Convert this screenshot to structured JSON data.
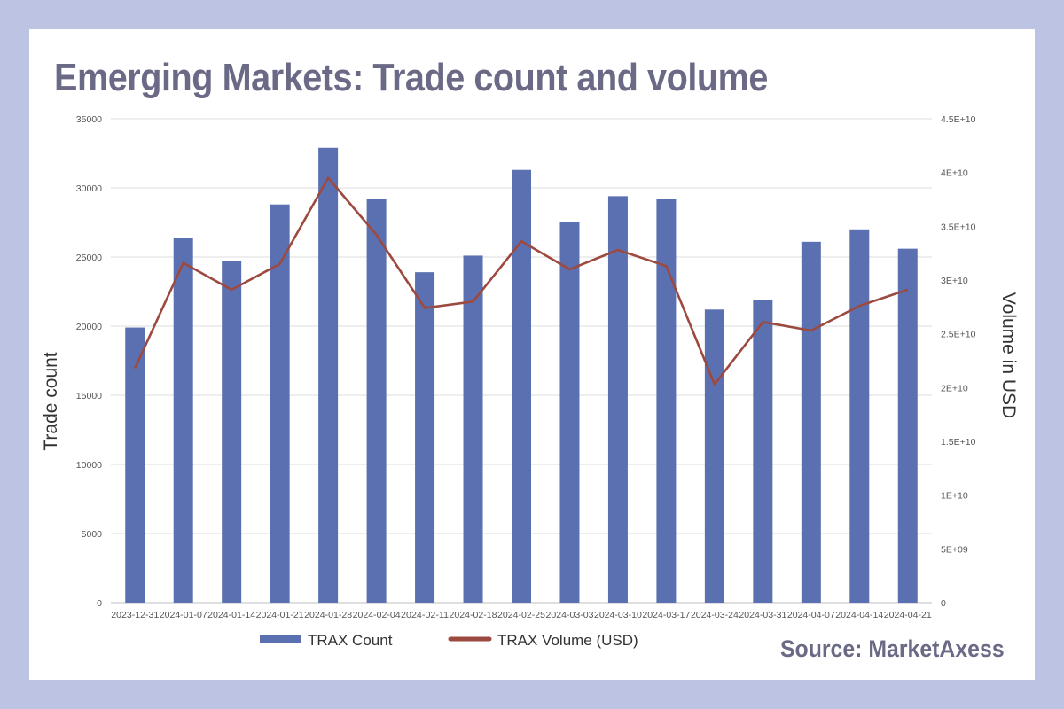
{
  "header": {
    "title": "Emerging Markets: Trade count and volume",
    "source": "Source: MarketAxess"
  },
  "colors": {
    "background": "#bcc3e3",
    "bar": "#5b70b0",
    "line": "#9c4a40",
    "title": "#6a6a86"
  },
  "chart_data": {
    "type": "bar",
    "title": "Emerging Markets: Trade count and volume",
    "categories": [
      "2023-12-31",
      "2024-01-07",
      "2024-01-14",
      "2024-01-21",
      "2024-01-28",
      "2024-02-04",
      "2024-02-11",
      "2024-02-18",
      "2024-02-25",
      "2024-03-03",
      "2024-03-10",
      "2024-03-17",
      "2024-03-24",
      "2024-03-31",
      "2024-04-07",
      "2024-04-14",
      "2024-04-21"
    ],
    "y_left": {
      "label": "Trade count",
      "min": 0,
      "max": 35000,
      "ticks": [
        "0",
        "5000",
        "10000",
        "15000",
        "20000",
        "25000",
        "30000",
        "35000"
      ]
    },
    "y_right": {
      "label": "Volume in USD",
      "min": 0,
      "max": 45000000000,
      "ticks": [
        "0",
        "5E+09",
        "1E+10",
        "1.5E+10",
        "2E+10",
        "2.5E+10",
        "3E+10",
        "3.5E+10",
        "4E+10",
        "4.5E+10"
      ]
    },
    "series": [
      {
        "name": "TRAX Count",
        "type": "bar",
        "axis": "left",
        "values": [
          19900,
          26400,
          24700,
          28800,
          32900,
          29200,
          23900,
          25100,
          31300,
          27500,
          29400,
          29200,
          21200,
          21900,
          26100,
          27000,
          25600
        ]
      },
      {
        "name": "TRAX Volume (USD)",
        "type": "line",
        "axis": "right",
        "values": [
          21800000000,
          31600000000,
          29100000000,
          31500000000,
          39500000000,
          34200000000,
          27400000000,
          28000000000,
          33600000000,
          31000000000,
          32800000000,
          31300000000,
          20300000000,
          26100000000,
          25300000000,
          27600000000,
          29100000000
        ]
      }
    ],
    "grid": true,
    "legend": "bottom"
  }
}
